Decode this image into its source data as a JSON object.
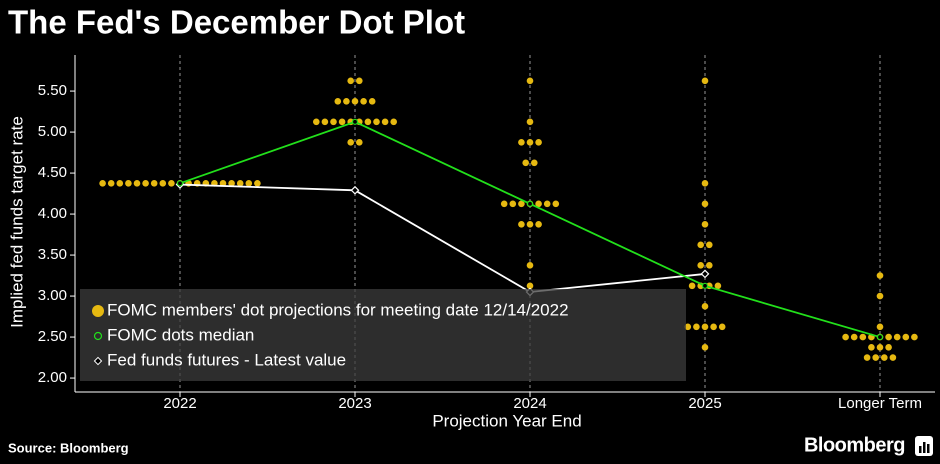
{
  "chart_data": {
    "type": "dot_plot",
    "title": "The Fed's December Dot Plot",
    "xlabel": "Projection Year End",
    "ylabel": "Implied fed funds target rate",
    "source": "Source: Bloomberg",
    "brand": "Bloomberg",
    "categories": [
      "2022",
      "2023",
      "2024",
      "2025",
      "Longer Term"
    ],
    "ylim": [
      1.83,
      5.94
    ],
    "yticks": [
      {
        "value": 2.0,
        "label": "2.00"
      },
      {
        "value": 2.5,
        "label": "2.50"
      },
      {
        "value": 3.0,
        "label": "3.00"
      },
      {
        "value": 3.5,
        "label": "3.50"
      },
      {
        "value": 4.0,
        "label": "4.00"
      },
      {
        "value": 4.5,
        "label": "4.50"
      },
      {
        "value": 5.0,
        "label": "5.00"
      },
      {
        "value": 5.5,
        "label": "5.50"
      }
    ],
    "grid": true,
    "series": [
      {
        "name": "FOMC members' dot projections for meeting date 12/14/2022",
        "color": "#e6b911",
        "values": [
          [
            4.375,
            4.375,
            4.375,
            4.375,
            4.375,
            4.375,
            4.375,
            4.375,
            4.375,
            4.375,
            4.375,
            4.375,
            4.375,
            4.375,
            4.375,
            4.375,
            4.375,
            4.375,
            4.375
          ],
          [
            5.625,
            5.625,
            5.375,
            5.375,
            5.375,
            5.375,
            5.375,
            5.125,
            5.125,
            5.125,
            5.125,
            5.125,
            5.125,
            5.125,
            5.125,
            5.125,
            5.125,
            4.875,
            4.875
          ],
          [
            5.625,
            5.125,
            4.875,
            4.875,
            4.875,
            4.625,
            4.625,
            4.125,
            4.125,
            4.125,
            4.125,
            4.125,
            4.125,
            4.125,
            3.875,
            3.875,
            3.875,
            3.375,
            3.125
          ],
          [
            5.625,
            4.375,
            4.125,
            3.875,
            3.625,
            3.625,
            3.375,
            3.375,
            3.125,
            3.125,
            3.125,
            3.125,
            2.875,
            2.625,
            2.625,
            2.625,
            2.625,
            2.625,
            2.375
          ],
          [
            3.25,
            3.0,
            2.625,
            2.5,
            2.5,
            2.5,
            2.5,
            2.5,
            2.5,
            2.5,
            2.5,
            2.5,
            2.375,
            2.375,
            2.375,
            2.25,
            2.25,
            2.25,
            2.25
          ]
        ]
      },
      {
        "name": "FOMC dots median",
        "color": "#22e01b",
        "values": [
          4.375,
          5.125,
          4.125,
          3.125,
          2.5
        ]
      },
      {
        "name": "Fed funds futures - Latest value",
        "color": "#ffffff",
        "values": [
          4.36,
          4.29,
          3.05,
          3.27,
          null
        ]
      }
    ]
  }
}
